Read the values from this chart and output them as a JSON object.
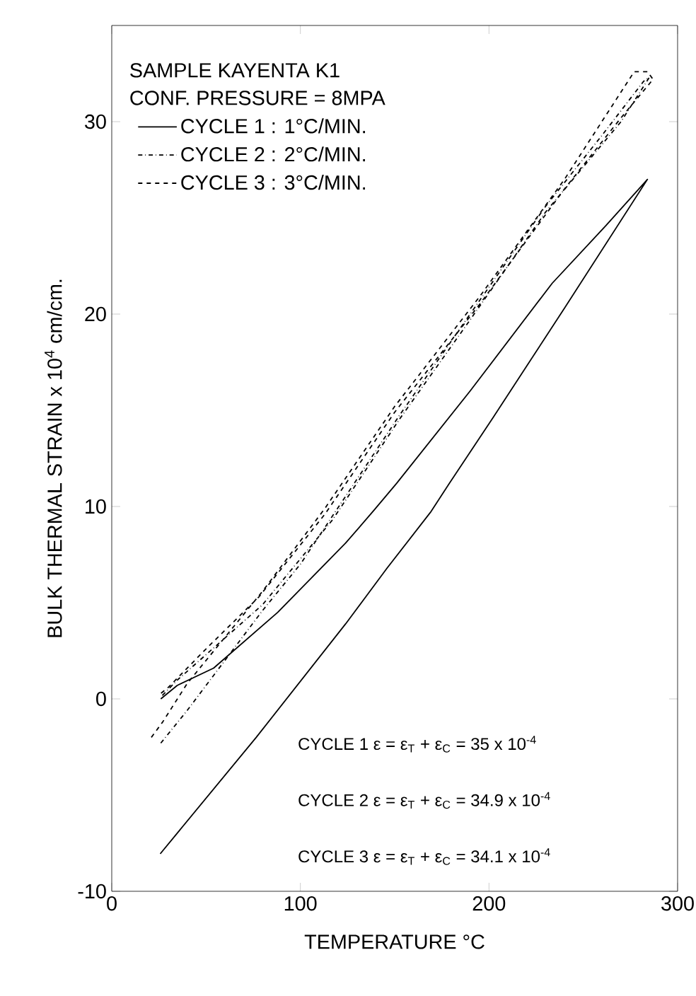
{
  "chart_data": {
    "type": "line",
    "xlabel": "TEMPERATURE °C",
    "ylabel": "BULK THERMAL STRAIN x 10$^{4}$ cm/cm.",
    "legend_title": "SAMPLE KAYENTA K1",
    "xlim": [
      0,
      300
    ],
    "ylim": [
      -10,
      35
    ],
    "xticks": [
      0,
      100,
      200,
      300
    ],
    "yticks": [
      -10,
      0,
      10,
      20,
      30
    ],
    "legend": "top left",
    "marker": "none",
    "grid": false,
    "series": [
      {
        "name": "CYCLE 1 : 1°C/MIN.",
        "color": "#000000",
        "line_style": "solid",
        "x": [
          25.7,
          76.6,
          124,
          146,
          169,
          179,
          202,
          240,
          284,
          262,
          233.5,
          190,
          151,
          139,
          124,
          88,
          54,
          34.7,
          26
        ],
        "values": [
          -8.05,
          -2.0,
          3.9,
          6.8,
          9.7,
          11.2,
          14.6,
          20.3,
          27.0,
          24.6,
          21.6,
          16.0,
          11.2,
          9.8,
          8.1,
          4.5,
          1.6,
          0.7,
          0.0
        ]
      },
      {
        "name": "CYCLE 2 : 2°C/MIN.",
        "color": "#000000",
        "line_style": "dashdot",
        "x": [
          26,
          40,
          60,
          80,
          100,
          117,
          153,
          190,
          230,
          260,
          282,
          285,
          270,
          230,
          190,
          153,
          117,
          80,
          50,
          35,
          26
        ],
        "values": [
          -2.3,
          -0.6,
          2.0,
          4.6,
          7.0,
          9.5,
          14.8,
          20.0,
          25.6,
          29.3,
          32.1,
          32.3,
          30.0,
          25.3,
          19.7,
          14.6,
          9.3,
          4.9,
          2.3,
          1.0,
          0.1
        ]
      },
      {
        "name": "CYCLE 3 : 3°C/MIN.",
        "color": "#000000",
        "line_style": "dashed",
        "x": [
          21,
          27,
          40,
          60,
          80,
          113,
          150,
          195,
          240,
          277,
          284,
          287,
          270,
          240,
          195,
          150,
          113,
          78,
          50,
          30,
          25
        ],
        "values": [
          -2.0,
          -1.2,
          0.8,
          3.2,
          5.6,
          9.9,
          15.2,
          20.9,
          27.0,
          32.6,
          32.6,
          32.2,
          30.2,
          26.5,
          20.5,
          14.9,
          9.6,
          5.3,
          2.6,
          0.6,
          0.2
        ]
      }
    ],
    "annotations": [
      "CONF. PRESSURE = 8MPA",
      "CYCLE 1 ε = ε$_{T}$ + ε$_{C}$ = 35 x 10$^{-4}$",
      "CYCLE 2 ε = ε$_{T}$ + ε$_{C}$ = 34.9 x 10$^{-4}$",
      "CYCLE 3 ε = ε$_{T}$ + ε$_{C}$ = 34.1 x 10$^{-4}$"
    ]
  }
}
